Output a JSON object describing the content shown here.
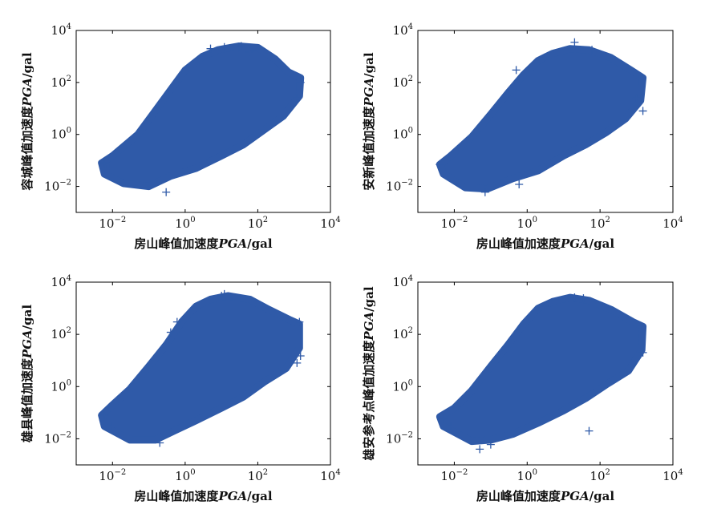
{
  "figure": {
    "marker": "+",
    "marker_color": "#2f5aa8"
  },
  "chart_data": [
    {
      "type": "scatter",
      "title": "",
      "xlabel": "房山峰值加速度PGA/gal",
      "ylabel": "容城峰值加速度PGA/gal",
      "xscale": "log",
      "yscale": "log",
      "xlim": [
        0.001,
        10000
      ],
      "ylim": [
        0.001,
        10000
      ],
      "xticks": [
        0.01,
        1,
        100,
        10000
      ],
      "yticks": [
        0.01,
        1,
        100,
        10000
      ],
      "xticklabels": [
        "10^-2",
        "10^0",
        "10^2",
        "10^4"
      ],
      "yticklabels": [
        "10^-2",
        "10^0",
        "10^2",
        "10^4"
      ],
      "grid": false,
      "cloud_envelope": [
        [
          0.006,
          0.03
        ],
        [
          0.02,
          0.013
        ],
        [
          0.1,
          0.01
        ],
        [
          0.4,
          0.025
        ],
        [
          2,
          0.05
        ],
        [
          10,
          0.15
        ],
        [
          40,
          0.4
        ],
        [
          150,
          1.5
        ],
        [
          500,
          5
        ],
        [
          1400,
          30
        ],
        [
          1500,
          150
        ],
        [
          700,
          250
        ],
        [
          300,
          800
        ],
        [
          100,
          2200
        ],
        [
          30,
          2500
        ],
        [
          8,
          1800
        ],
        [
          3,
          1000
        ],
        [
          1,
          300
        ],
        [
          0.5,
          80
        ],
        [
          0.15,
          8
        ],
        [
          0.05,
          1
        ],
        [
          0.01,
          0.15
        ],
        [
          0.005,
          0.08
        ]
      ],
      "x": [
        0.006,
        0.008,
        0.3,
        30,
        35,
        60,
        1200,
        1500,
        5,
        12
      ],
      "y": [
        0.08,
        0.05,
        0.006,
        2200,
        2500,
        1500,
        25,
        100,
        2000,
        2300
      ]
    },
    {
      "type": "scatter",
      "title": "",
      "xlabel": "房山峰值加速度PGA/gal",
      "ylabel": "安新峰值加速度PGA/gal",
      "xscale": "log",
      "yscale": "log",
      "xlim": [
        0.001,
        10000
      ],
      "ylim": [
        0.001,
        10000
      ],
      "xticks": [
        0.01,
        1,
        100,
        10000
      ],
      "yticks": [
        0.01,
        1,
        100,
        10000
      ],
      "xticklabels": [
        "10^-2",
        "10^0",
        "10^2",
        "10^4"
      ],
      "yticklabels": [
        "10^-2",
        "10^0",
        "10^2",
        "10^4"
      ],
      "grid": false,
      "cloud_envelope": [
        [
          0.005,
          0.03
        ],
        [
          0.02,
          0.009
        ],
        [
          0.08,
          0.008
        ],
        [
          0.4,
          0.02
        ],
        [
          2,
          0.04
        ],
        [
          10,
          0.15
        ],
        [
          40,
          0.4
        ],
        [
          150,
          1.2
        ],
        [
          500,
          4
        ],
        [
          1300,
          20
        ],
        [
          1500,
          150
        ],
        [
          700,
          300
        ],
        [
          200,
          900
        ],
        [
          50,
          1800
        ],
        [
          15,
          2000
        ],
        [
          5,
          1300
        ],
        [
          2,
          700
        ],
        [
          0.8,
          200
        ],
        [
          0.3,
          40
        ],
        [
          0.1,
          6
        ],
        [
          0.03,
          0.8
        ],
        [
          0.008,
          0.15
        ],
        [
          0.004,
          0.07
        ]
      ],
      "x": [
        0.004,
        0.07,
        0.6,
        20,
        60,
        1200,
        1500,
        1000,
        0.5,
        3
      ],
      "y": [
        0.07,
        0.006,
        0.012,
        3500,
        1800,
        140,
        8,
        25,
        300,
        900
      ]
    },
    {
      "type": "scatter",
      "title": "",
      "xlabel": "房山峰值加速度PGA/gal",
      "ylabel": "雄县峰值加速度PGA/gal",
      "xscale": "log",
      "yscale": "log",
      "xlim": [
        0.001,
        10000
      ],
      "ylim": [
        0.001,
        10000
      ],
      "xticks": [
        0.01,
        1,
        100,
        10000
      ],
      "yticks": [
        0.01,
        1,
        100,
        10000
      ],
      "xticklabels": [
        "10^-2",
        "10^0",
        "10^2",
        "10^4"
      ],
      "yticklabels": [
        "10^-2",
        "10^0",
        "10^2",
        "10^4"
      ],
      "grid": false,
      "cloud_envelope": [
        [
          0.006,
          0.03
        ],
        [
          0.03,
          0.009
        ],
        [
          0.15,
          0.009
        ],
        [
          0.5,
          0.02
        ],
        [
          2,
          0.05
        ],
        [
          10,
          0.15
        ],
        [
          40,
          0.4
        ],
        [
          150,
          1.5
        ],
        [
          600,
          5
        ],
        [
          1400,
          30
        ],
        [
          1400,
          250
        ],
        [
          800,
          350
        ],
        [
          200,
          900
        ],
        [
          60,
          2200
        ],
        [
          15,
          3000
        ],
        [
          5,
          2200
        ],
        [
          2,
          1200
        ],
        [
          0.8,
          300
        ],
        [
          0.3,
          40
        ],
        [
          0.1,
          6
        ],
        [
          0.03,
          0.8
        ],
        [
          0.01,
          0.2
        ],
        [
          0.005,
          0.08
        ]
      ],
      "x": [
        0.006,
        0.01,
        0.2,
        10,
        12,
        1400,
        1500,
        1200,
        0.6,
        0.4
      ],
      "y": [
        0.08,
        0.03,
        0.007,
        3000,
        3500,
        300,
        15,
        8,
        300,
        120
      ]
    },
    {
      "type": "scatter",
      "title": "",
      "xlabel": "房山峰值加速度PGA/gal",
      "ylabel": "雄安参考点峰值加速度PGA/gal",
      "xscale": "log",
      "yscale": "log",
      "xlim": [
        0.001,
        10000
      ],
      "ylim": [
        0.001,
        10000
      ],
      "xticks": [
        0.01,
        1,
        100,
        10000
      ],
      "yticks": [
        0.01,
        1,
        100,
        10000
      ],
      "xticklabels": [
        "10^-2",
        "10^0",
        "10^2",
        "10^4"
      ],
      "yticklabels": [
        "10^-2",
        "10^0",
        "10^2",
        "10^4"
      ],
      "grid": false,
      "cloud_envelope": [
        [
          0.005,
          0.03
        ],
        [
          0.03,
          0.008
        ],
        [
          0.1,
          0.009
        ],
        [
          0.4,
          0.015
        ],
        [
          2,
          0.04
        ],
        [
          10,
          0.12
        ],
        [
          40,
          0.35
        ],
        [
          150,
          1.2
        ],
        [
          600,
          4
        ],
        [
          1400,
          25
        ],
        [
          1500,
          200
        ],
        [
          800,
          300
        ],
        [
          200,
          900
        ],
        [
          50,
          2000
        ],
        [
          15,
          2600
        ],
        [
          5,
          1800
        ],
        [
          2,
          1000
        ],
        [
          0.8,
          250
        ],
        [
          0.3,
          40
        ],
        [
          0.1,
          6
        ],
        [
          0.03,
          0.7
        ],
        [
          0.01,
          0.15
        ],
        [
          0.004,
          0.07
        ]
      ],
      "x": [
        0.005,
        0.008,
        0.1,
        20,
        35,
        1400,
        1500,
        50,
        0.05,
        3
      ],
      "y": [
        0.06,
        0.03,
        0.006,
        2600,
        2400,
        200,
        20,
        0.02,
        0.004,
        1200
      ]
    }
  ]
}
